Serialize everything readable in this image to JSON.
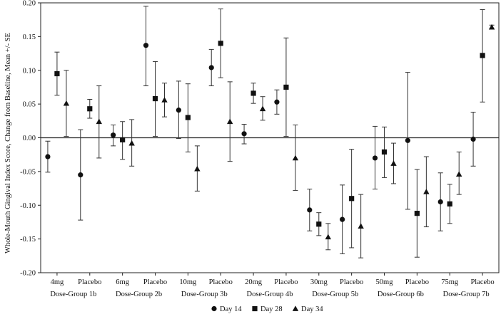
{
  "chart_data": {
    "type": "scatter",
    "subtype": "error-bar",
    "title": "",
    "ylabel": "Whole-Mouth Gingival Index Score, Change from Baseline, Mean +/- SE",
    "xlabel": "",
    "ylim": [
      -0.2,
      0.2
    ],
    "yticks": [
      0.2,
      0.15,
      0.1,
      0.05,
      0.0,
      -0.05,
      -0.1,
      -0.15,
      -0.2
    ],
    "ytick_labels": [
      "0.20",
      "0.15",
      "0.10",
      "0.05",
      "0.00",
      "-0.05",
      "-0.10",
      "-0.15",
      "-0.20"
    ],
    "categories": [
      "4mg",
      "Placebo",
      "6mg",
      "Placebo",
      "10mg",
      "Placebo",
      "20mg",
      "Placebo",
      "30mg",
      "Placebo",
      "50mg",
      "Placebo",
      "75mg",
      "Placebo"
    ],
    "groups": [
      "Dose-Group 1b",
      "Dose-Group 2b",
      "Dose-Group 3b",
      "Dose-Group 4b",
      "Dose-Group 5b",
      "Dose-Group 6b",
      "Dose-Group 7b"
    ],
    "grid": false,
    "reference_line": 0,
    "legend_position": "bottom",
    "series": [
      {
        "name": "Day 14",
        "marker": "circle",
        "values": [
          -0.028,
          -0.055,
          0.004,
          0.137,
          0.041,
          0.104,
          0.006,
          0.053,
          -0.107,
          -0.121,
          -0.03,
          -0.004,
          -0.095,
          -0.002
        ],
        "lower": [
          -0.051,
          -0.122,
          -0.012,
          0.077,
          -0.001,
          0.077,
          -0.009,
          0.035,
          -0.138,
          -0.172,
          -0.076,
          -0.106,
          -0.138,
          -0.042
        ],
        "upper": [
          -0.005,
          0.012,
          0.019,
          0.195,
          0.084,
          0.131,
          0.02,
          0.071,
          -0.076,
          -0.07,
          0.017,
          0.097,
          -0.052,
          0.038
        ]
      },
      {
        "name": "Day 28",
        "marker": "square",
        "values": [
          0.095,
          0.043,
          -0.003,
          0.058,
          0.03,
          0.14,
          0.066,
          0.075,
          -0.128,
          -0.09,
          -0.021,
          -0.112,
          -0.098,
          0.122
        ],
        "lower": [
          0.063,
          0.029,
          -0.032,
          0.002,
          -0.021,
          0.089,
          0.051,
          0.002,
          -0.145,
          -0.163,
          -0.059,
          -0.177,
          -0.127,
          0.053
        ],
        "upper": [
          0.127,
          0.057,
          0.024,
          0.113,
          0.08,
          0.191,
          0.081,
          0.148,
          -0.111,
          -0.017,
          0.016,
          -0.047,
          -0.069,
          0.19
        ]
      },
      {
        "name": "Day 34",
        "marker": "triangle",
        "values": [
          0.051,
          0.024,
          -0.008,
          0.056,
          -0.046,
          0.024,
          0.043,
          -0.03,
          -0.147,
          -0.131,
          -0.038,
          -0.08,
          -0.054,
          0.164
        ],
        "lower": [
          0.002,
          -0.03,
          -0.042,
          0.031,
          -0.079,
          -0.035,
          0.026,
          -0.078,
          -0.166,
          -0.178,
          -0.068,
          -0.132,
          -0.084,
          0.161
        ],
        "upper": [
          0.1,
          0.077,
          0.027,
          0.081,
          -0.012,
          0.083,
          0.061,
          0.019,
          -0.127,
          -0.084,
          -0.008,
          -0.028,
          -0.021,
          0.167
        ]
      }
    ]
  }
}
